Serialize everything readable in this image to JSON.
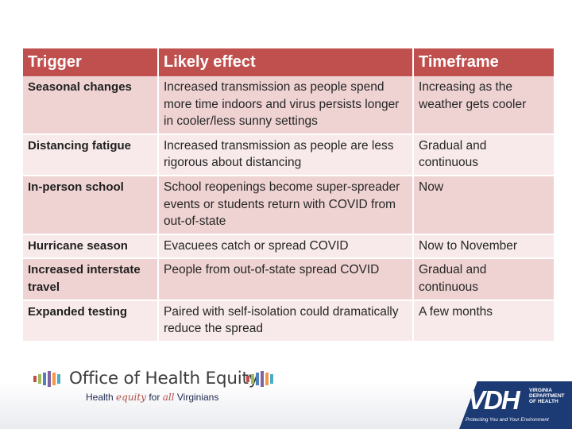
{
  "table": {
    "headers": [
      "Trigger",
      "Likely effect",
      "Timeframe"
    ],
    "rows": [
      {
        "trigger": "Seasonal changes",
        "effect": "Increased transmission as people spend more time indoors and virus persists longer in cooler/less sunny settings",
        "timeframe": "Increasing as the weather gets cooler"
      },
      {
        "trigger": "Distancing fatigue",
        "effect": "Increased transmission as people are less rigorous about distancing",
        "timeframe": "Gradual and continuous"
      },
      {
        "trigger": "In-person school",
        "effect": "School reopenings become super-spreader events or students return with COVID from out-of-state",
        "timeframe": "Now"
      },
      {
        "trigger": "Hurricane season",
        "effect": "Evacuees catch or spread COVID",
        "timeframe": "Now to November"
      },
      {
        "trigger": "Increased interstate travel",
        "effect": "People from out-of-state spread COVID",
        "timeframe": "Gradual and continuous"
      },
      {
        "trigger": "Expanded testing",
        "effect": "Paired with self-isolation could dramatically reduce the spread",
        "timeframe": "A few months"
      }
    ]
  },
  "footer": {
    "ohe": {
      "title": "Office of Health Equity",
      "tagline_pre": "Health",
      "tagline_script1": "equity",
      "tagline_mid": "for",
      "tagline_script2": "all",
      "tagline_post": "Virginians",
      "bar_colors": [
        "#c0504d",
        "#9bbb59",
        "#4f81bd",
        "#8064a2",
        "#f79646",
        "#4bacc6"
      ]
    },
    "vdh": {
      "mark": "VDH",
      "name": "VIRGINIA\nDEPARTMENT\nOF HEALTH",
      "tagline": "Protecting You and Your Environment"
    }
  },
  "colors": {
    "header": "#c0504d",
    "row_odd": "#efd3d2",
    "row_even": "#f8eaea",
    "vdh_blue": "#1c3a73"
  }
}
